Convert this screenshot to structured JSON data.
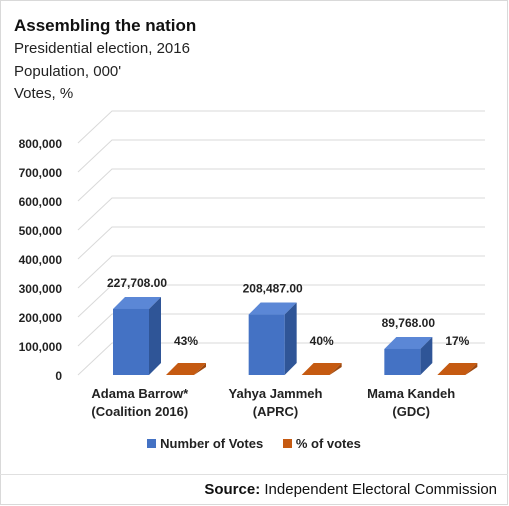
{
  "header": {
    "title": "Assembling the nation",
    "lines": [
      "Presidential election, 2016",
      "Population, 000'",
      "Votes, %"
    ]
  },
  "source": {
    "label": "Source:",
    "text": "Independent Electoral Commission"
  },
  "colors": {
    "votes": "#4472c4",
    "votes_side": "#2f5597",
    "votes_top": "#5b87d6",
    "pct": "#c55a11",
    "pct_side": "#9e480e",
    "grid": "#d9d9d9"
  },
  "chart_data": {
    "type": "bar",
    "style": "3d-clustered-column",
    "categories": [
      [
        "Adama Barrow*",
        "(Coalition 2016)"
      ],
      [
        "Yahya Jammeh",
        "(APRC)"
      ],
      [
        "Mama Kandeh",
        "(GDC)"
      ]
    ],
    "series": [
      {
        "name": "Number of Votes",
        "values": [
          227708,
          208487,
          89768
        ],
        "labels": [
          "227,708.00",
          "208,487.00",
          "89,768.00"
        ]
      },
      {
        "name": "% of votes",
        "values": [
          43,
          40,
          17
        ],
        "labels": [
          "43%",
          "40%",
          "17%"
        ]
      }
    ],
    "ylim": [
      0,
      800000
    ],
    "yticks": [
      "0",
      "100,000",
      "200,000",
      "300,000",
      "400,000",
      "500,000",
      "600,000",
      "700,000",
      "800,000"
    ],
    "grid": true,
    "legend": "bottom"
  }
}
